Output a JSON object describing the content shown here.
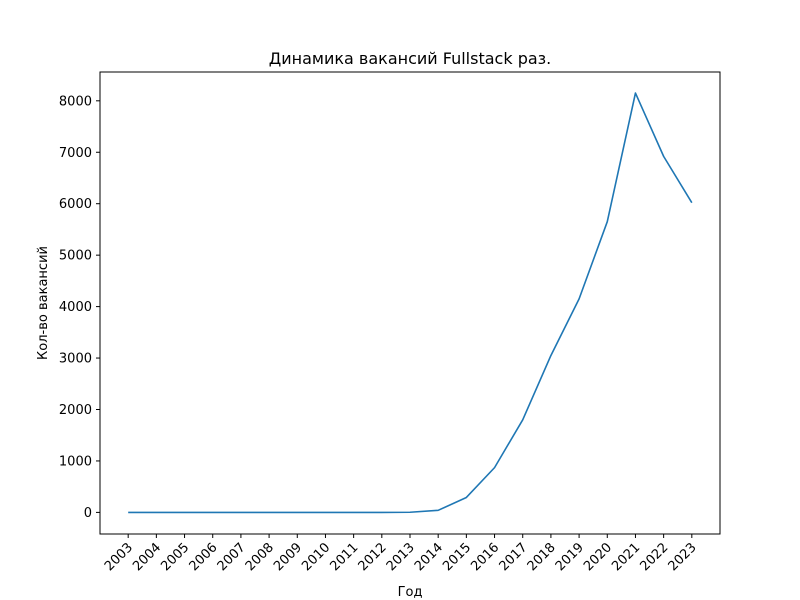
{
  "chart_data": {
    "type": "line",
    "title": "Динамика вакансий Fullstack раз.",
    "xlabel": "Год",
    "ylabel": "Кол-во вакансий",
    "x": [
      "2003",
      "2004",
      "2005",
      "2006",
      "2007",
      "2008",
      "2009",
      "2010",
      "2011",
      "2012",
      "2013",
      "2014",
      "2015",
      "2016",
      "2017",
      "2018",
      "2019",
      "2020",
      "2021",
      "2022",
      "2023"
    ],
    "series": [
      {
        "color": "#1f77b4",
        "values": [
          0,
          0,
          0,
          0,
          0,
          0,
          0,
          0,
          0,
          0,
          3,
          40,
          290,
          870,
          1800,
          3050,
          4150,
          5650,
          8150,
          6920,
          6020
        ]
      }
    ],
    "xlim": [
      -1,
      21
    ],
    "ylim": [
      -420,
      8560
    ],
    "yticks": [
      0,
      1000,
      2000,
      3000,
      4000,
      5000,
      6000,
      7000,
      8000
    ],
    "xtick_rotation": 45,
    "grid": false,
    "legend": false
  }
}
